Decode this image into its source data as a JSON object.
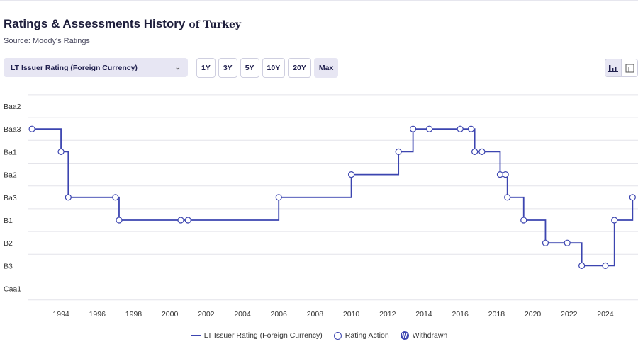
{
  "header": {
    "title": "Ratings & Assessments History",
    "country": "of Turkey",
    "source": "Source: Moody's Ratings"
  },
  "controls": {
    "dropdown_value": "LT Issuer Rating (Foreign Currency)",
    "ranges": [
      "1Y",
      "3Y",
      "5Y",
      "10Y",
      "20Y",
      "Max"
    ],
    "active_range": "Max",
    "view_icons": [
      "bar-chart-icon",
      "table-icon"
    ]
  },
  "legend": {
    "line_label": "LT Issuer Rating (Foreign Currency)",
    "action_label": "Rating Action",
    "withdrawn_label": "Withdrawn",
    "withdrawn_symbol": "W"
  },
  "colors": {
    "series": "#3c45b0",
    "gridline": "#e4e4ea"
  },
  "chart_data": {
    "type": "line",
    "step": "after",
    "xlabel": "",
    "ylabel": "",
    "x_ticks": [
      1994,
      1996,
      1998,
      2000,
      2002,
      2004,
      2006,
      2008,
      2010,
      2012,
      2014,
      2016,
      2018,
      2020,
      2022,
      2024
    ],
    "xlim": [
      1992.2,
      2025.8
    ],
    "y_categories": [
      "Baa2",
      "Baa3",
      "Ba1",
      "Ba2",
      "Ba3",
      "B1",
      "B2",
      "B3",
      "Caa1"
    ],
    "series": [
      {
        "name": "LT Issuer Rating (Foreign Currency)",
        "points": [
          {
            "x": 1992.4,
            "y": "Baa3"
          },
          {
            "x": 1994.0,
            "y": "Ba1"
          },
          {
            "x": 1994.4,
            "y": "Ba3"
          },
          {
            "x": 1997.0,
            "y": "Ba3"
          },
          {
            "x": 1997.2,
            "y": "B1"
          },
          {
            "x": 2000.6,
            "y": "B1"
          },
          {
            "x": 2001.0,
            "y": "B1"
          },
          {
            "x": 2006.0,
            "y": "Ba3"
          },
          {
            "x": 2010.0,
            "y": "Ba2"
          },
          {
            "x": 2012.6,
            "y": "Ba1"
          },
          {
            "x": 2013.4,
            "y": "Baa3"
          },
          {
            "x": 2014.3,
            "y": "Baa3"
          },
          {
            "x": 2016.0,
            "y": "Baa3"
          },
          {
            "x": 2016.6,
            "y": "Baa3"
          },
          {
            "x": 2016.8,
            "y": "Ba1"
          },
          {
            "x": 2017.2,
            "y": "Ba1"
          },
          {
            "x": 2018.2,
            "y": "Ba2"
          },
          {
            "x": 2018.5,
            "y": "Ba2"
          },
          {
            "x": 2018.6,
            "y": "Ba3"
          },
          {
            "x": 2019.5,
            "y": "B1"
          },
          {
            "x": 2020.7,
            "y": "B2"
          },
          {
            "x": 2021.9,
            "y": "B2"
          },
          {
            "x": 2022.7,
            "y": "B3"
          },
          {
            "x": 2024.0,
            "y": "B3"
          },
          {
            "x": 2024.5,
            "y": "B1"
          },
          {
            "x": 2025.5,
            "y": "Ba3"
          }
        ]
      }
    ]
  }
}
